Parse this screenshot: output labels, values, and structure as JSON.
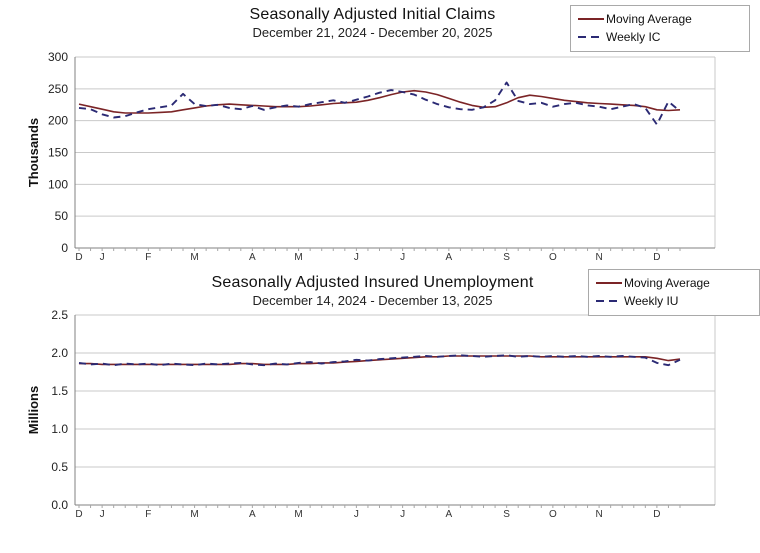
{
  "colors": {
    "moving_average": "#7b2426",
    "weekly": "#2b2a74",
    "gridline": "#c9c9c9",
    "axis": "#808080",
    "tick": "#a6a6a6",
    "label_text": "#333333"
  },
  "chart_data": [
    {
      "type": "line",
      "title": "Seasonally Adjusted Initial Claims",
      "subtitle": "December 21, 2024 - December 20, 2025",
      "ylabel": "Thousands",
      "ylim": [
        0,
        300
      ],
      "y_tick_labels": [
        "0",
        "50",
        "100",
        "150",
        "200",
        "250",
        "300"
      ],
      "x_tick_labels": [
        "D",
        "J",
        "F",
        "M",
        "A",
        "M",
        "J",
        "J",
        "A",
        "S",
        "O",
        "N",
        "D"
      ],
      "x_tick_week_index": [
        0,
        2,
        6,
        10,
        15,
        19,
        24,
        28,
        32,
        37,
        41,
        45,
        50
      ],
      "weeks": 53,
      "grid": "horizontal",
      "legend_position": "top-right",
      "series": [
        {
          "name": "Moving Average",
          "style": "solid",
          "values": [
            226,
            222,
            218,
            214,
            212,
            212,
            212,
            213,
            214,
            217,
            220,
            223,
            225,
            226,
            225,
            224,
            223,
            222,
            222,
            222,
            223,
            225,
            227,
            228,
            229,
            232,
            236,
            241,
            245,
            247,
            245,
            241,
            235,
            229,
            224,
            221,
            222,
            228,
            236,
            240,
            238,
            235,
            232,
            230,
            228,
            227,
            226,
            225,
            224,
            222,
            217,
            216,
            217
          ]
        },
        {
          "name": "Weekly IC",
          "style": "dashed",
          "values": [
            220,
            218,
            210,
            205,
            207,
            213,
            218,
            221,
            224,
            242,
            226,
            223,
            225,
            220,
            218,
            223,
            217,
            221,
            224,
            222,
            226,
            229,
            232,
            228,
            233,
            238,
            244,
            248,
            245,
            241,
            233,
            226,
            221,
            218,
            217,
            221,
            232,
            260,
            231,
            226,
            228,
            222,
            226,
            228,
            224,
            222,
            218,
            222,
            226,
            220,
            194,
            230,
            215
          ]
        }
      ]
    },
    {
      "type": "line",
      "title": "Seasonally Adjusted Insured Unemployment",
      "subtitle": "December 14, 2024 - December 13, 2025",
      "ylabel": "Millions",
      "ylim": [
        0,
        2.5
      ],
      "y_tick_labels": [
        "0.0",
        "0.5",
        "1.0",
        "1.5",
        "2.0",
        "2.5"
      ],
      "x_tick_labels": [
        "D",
        "J",
        "F",
        "M",
        "A",
        "M",
        "J",
        "J",
        "A",
        "S",
        "O",
        "N",
        "D"
      ],
      "x_tick_week_index": [
        0,
        2,
        6,
        10,
        15,
        19,
        24,
        28,
        32,
        37,
        41,
        45,
        50
      ],
      "weeks": 53,
      "grid": "horizontal",
      "legend_position": "top-right",
      "series": [
        {
          "name": "Moving Average",
          "style": "solid",
          "values": [
            1.86,
            1.86,
            1.85,
            1.85,
            1.85,
            1.85,
            1.85,
            1.85,
            1.85,
            1.85,
            1.85,
            1.85,
            1.85,
            1.85,
            1.86,
            1.86,
            1.85,
            1.85,
            1.85,
            1.86,
            1.86,
            1.87,
            1.87,
            1.88,
            1.89,
            1.9,
            1.91,
            1.92,
            1.93,
            1.94,
            1.95,
            1.95,
            1.96,
            1.96,
            1.96,
            1.96,
            1.96,
            1.96,
            1.96,
            1.96,
            1.95,
            1.95,
            1.95,
            1.95,
            1.95,
            1.95,
            1.95,
            1.95,
            1.95,
            1.95,
            1.93,
            1.9,
            1.92
          ]
        },
        {
          "name": "Weekly IU",
          "style": "dashed",
          "values": [
            1.87,
            1.85,
            1.86,
            1.84,
            1.86,
            1.85,
            1.86,
            1.84,
            1.86,
            1.85,
            1.84,
            1.86,
            1.85,
            1.86,
            1.87,
            1.85,
            1.84,
            1.86,
            1.85,
            1.87,
            1.88,
            1.86,
            1.88,
            1.89,
            1.91,
            1.9,
            1.92,
            1.93,
            1.94,
            1.95,
            1.96,
            1.95,
            1.96,
            1.97,
            1.96,
            1.95,
            1.96,
            1.97,
            1.95,
            1.96,
            1.95,
            1.96,
            1.95,
            1.96,
            1.95,
            1.96,
            1.95,
            1.96,
            1.95,
            1.94,
            1.87,
            1.84,
            1.91
          ]
        }
      ]
    }
  ]
}
